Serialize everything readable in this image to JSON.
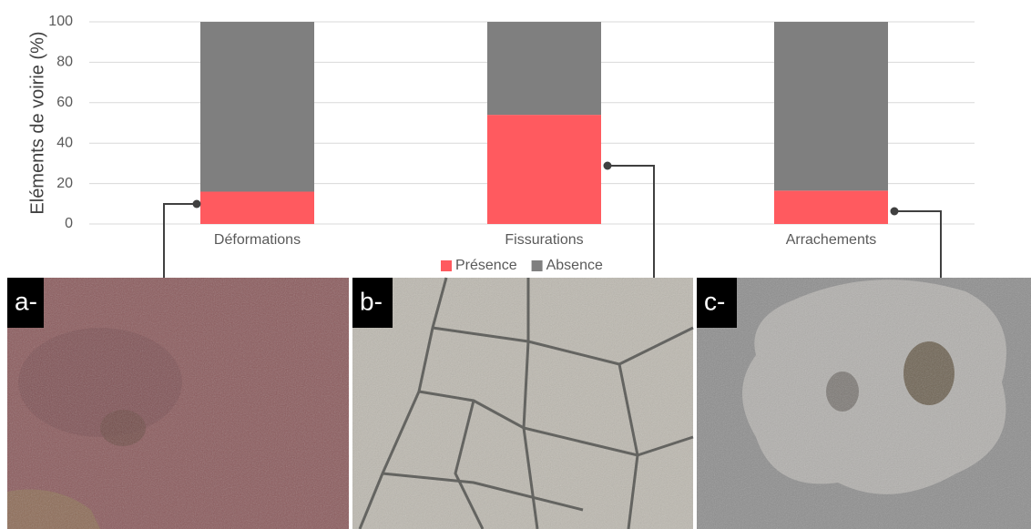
{
  "chart_data": {
    "type": "stacked-bar",
    "y_label": "Eléments de voirie (%)",
    "categories": [
      "Déformations",
      "Fissurations",
      "Arrachements"
    ],
    "series": [
      {
        "name": "Présence",
        "color": "#ff5a5f",
        "values": [
          16,
          54,
          16.5
        ]
      },
      {
        "name": "Absence",
        "color": "#7f7f7f",
        "values": [
          84,
          46,
          83.5
        ]
      }
    ],
    "ylim": [
      0,
      100
    ],
    "yticks": [
      0,
      20,
      40,
      60,
      80,
      100
    ],
    "grid": true,
    "legend": "bottom"
  },
  "photos": [
    "a-",
    "b-",
    "c-"
  ]
}
